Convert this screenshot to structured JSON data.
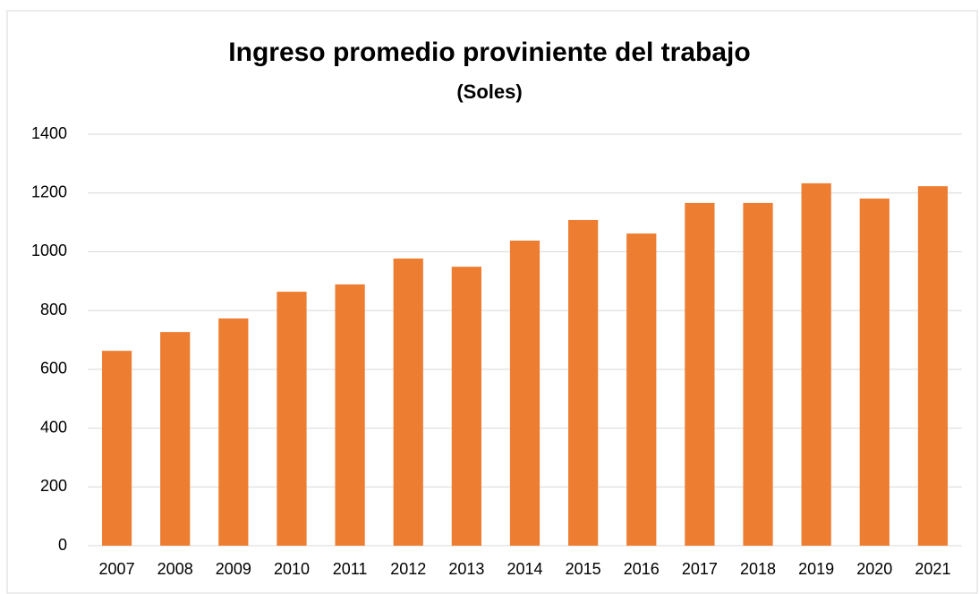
{
  "chart_data": {
    "type": "bar",
    "title": "Ingreso promedio proviniente del trabajo",
    "subtitle": "(Soles)",
    "categories": [
      "2007",
      "2008",
      "2009",
      "2010",
      "2011",
      "2012",
      "2013",
      "2014",
      "2015",
      "2016",
      "2017",
      "2018",
      "2019",
      "2020",
      "2021"
    ],
    "values": [
      663,
      727,
      773,
      864,
      889,
      977,
      949,
      1038,
      1108,
      1062,
      1166,
      1166,
      1233,
      1181,
      1223
    ],
    "color": "#ed7d31",
    "ylim": [
      0,
      1400
    ],
    "yticks": [
      0,
      200,
      400,
      600,
      800,
      1000,
      1200,
      1400
    ],
    "grid": true
  }
}
